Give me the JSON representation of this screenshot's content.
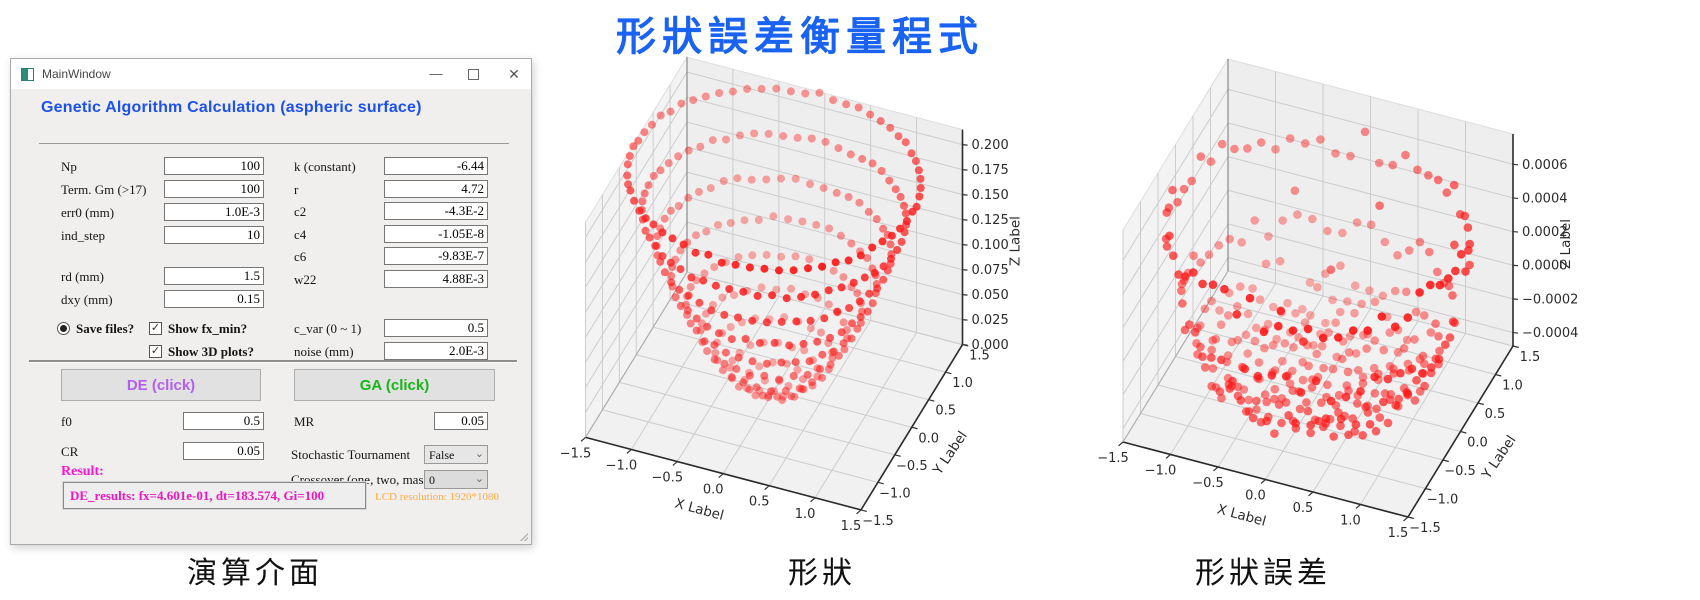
{
  "page": {
    "title": "形狀誤差衡量程式",
    "title_color": "#1a63f2"
  },
  "captions": {
    "left": "演算介面",
    "middle": "形狀",
    "right": "形狀誤差"
  },
  "window": {
    "titlebar": {
      "title": "MainWindow",
      "minimize": "—",
      "close": "✕"
    },
    "heading": "Genetic Algorithm Calculation (aspheric surface)",
    "left_fields_top": [
      {
        "label": "Np",
        "value": "100"
      },
      {
        "label": "Term. Gm (>17)",
        "value": "100"
      },
      {
        "label": "err0 (mm)",
        "value": "1.0E-3"
      },
      {
        "label": "ind_step",
        "value": "10"
      }
    ],
    "left_fields_bottom": [
      {
        "label": "rd (mm)",
        "value": "1.5"
      },
      {
        "label": "dxy (mm)",
        "value": "0.15"
      }
    ],
    "right_fields": [
      {
        "label": "k (constant)",
        "value": "-6.44"
      },
      {
        "label": "r",
        "value": "4.72"
      },
      {
        "label": "c2",
        "value": "-4.3E-2"
      },
      {
        "label": "c4",
        "value": "-1.05E-8"
      },
      {
        "label": "c6",
        "value": "-9.83E-7"
      },
      {
        "label": "w22",
        "value": "4.88E-3"
      }
    ],
    "save_radio": "Save files?",
    "check_fxmin": "Show fx_min?",
    "check_3d": "Show 3D plots?",
    "check_mark": "✓",
    "cvar": {
      "label": "c_var (0 ~ 1)",
      "value": "0.5"
    },
    "noise": {
      "label": "noise (mm)",
      "value": "2.0E-3"
    },
    "de_button": "DE (click)",
    "ga_button": "GA (click)",
    "f0": {
      "label": "f0",
      "value": "0.5"
    },
    "cr": {
      "label": "CR",
      "value": "0.05"
    },
    "mr": {
      "label": "MR",
      "value": "0.05"
    },
    "stochastic": {
      "label": "Stochastic Tournament",
      "value": "False"
    },
    "crossover": {
      "label": "Crossover (one, two, mask)",
      "value": "0"
    },
    "chevron": "⌄",
    "result_label": "Result:",
    "result_text": "DE_results: fx=4.601e-01, dt=183.574, Gi=100",
    "lcd_note": "LCD resolution: 1920*1080",
    "accent_heading": "#1d50ee",
    "accent_de": "#b25ff0",
    "accent_ga": "#17b617",
    "accent_result": "#ee16c0",
    "accent_lcd": "#ffab40"
  },
  "chart_data": [
    {
      "type": "scatter3d",
      "caption": "形狀",
      "xlabel": "X Label",
      "ylabel": "Y Label",
      "zlabel": "Z Label",
      "xticks": [
        -1.5,
        -1.0,
        -0.5,
        0.0,
        0.5,
        1.0,
        1.5
      ],
      "xtick_labels": [
        "−1.5",
        "−1.0",
        "−0.5",
        "0.0",
        "0.5",
        "1.0",
        "1.5"
      ],
      "yticks": [
        -1.5,
        -1.0,
        -0.5,
        0.0,
        0.5,
        1.0,
        1.5
      ],
      "ytick_labels": [
        "−1.5",
        "−1.0",
        "−0.5",
        "0.0",
        "0.5",
        "1.0",
        "1.5"
      ],
      "ztick_values": [
        0.0,
        0.025,
        0.05,
        0.075,
        0.1,
        0.125,
        0.15,
        0.175,
        0.2
      ],
      "ztick_labels": [
        "0.000",
        "0.025",
        "0.050",
        "0.075",
        "0.100",
        "0.125",
        "0.150",
        "0.175",
        "0.200"
      ],
      "xlim": [
        -1.5,
        1.5
      ],
      "ylim": [
        -1.5,
        1.5
      ],
      "zlim": [
        0.0,
        0.215
      ],
      "point_color": "#ff1212",
      "surface": {
        "kind": "asphere",
        "curvature": 0.2119,
        "conic": -6.44,
        "ring_step": 0.15,
        "max_radius": 1.5,
        "rings": 10,
        "noise": 0.002
      }
    },
    {
      "type": "scatter3d",
      "caption": "形狀誤差",
      "xlabel": "X Label",
      "ylabel": "Y Label",
      "zlabel": "Z Label",
      "xticks": [
        -1.5,
        -1.0,
        -0.5,
        0.0,
        0.5,
        1.0,
        1.5
      ],
      "xtick_labels": [
        "−1.5",
        "−1.0",
        "−0.5",
        "0.0",
        "0.5",
        "1.0",
        "1.5"
      ],
      "yticks": [
        -1.5,
        -1.0,
        -0.5,
        0.0,
        0.5,
        1.0,
        1.5
      ],
      "ytick_labels": [
        "−1.5",
        "−1.0",
        "−0.5",
        "0.0",
        "0.5",
        "1.0",
        "1.5"
      ],
      "ztick_values": [
        -0.0004,
        -0.0002,
        0.0,
        0.0002,
        0.0004,
        0.0006
      ],
      "ztick_labels": [
        "−0.0004",
        "−0.0002",
        "0.0000",
        "0.0002",
        "0.0004",
        "0.0006"
      ],
      "xlim": [
        -1.5,
        1.5
      ],
      "ylim": [
        -1.5,
        1.5
      ],
      "zlim": [
        -0.00048,
        0.00078
      ],
      "point_color": "#ff1212",
      "surface": {
        "kind": "error",
        "base": -0.00037,
        "rim_amp": 0.00085,
        "rim_power": 7,
        "noise": 6e-05,
        "outlier_rate": 0.03,
        "outlier_min": 5e-05,
        "outlier_span": 0.00055,
        "ring_step": 0.15,
        "max_radius": 1.5,
        "rings": 10
      }
    }
  ]
}
